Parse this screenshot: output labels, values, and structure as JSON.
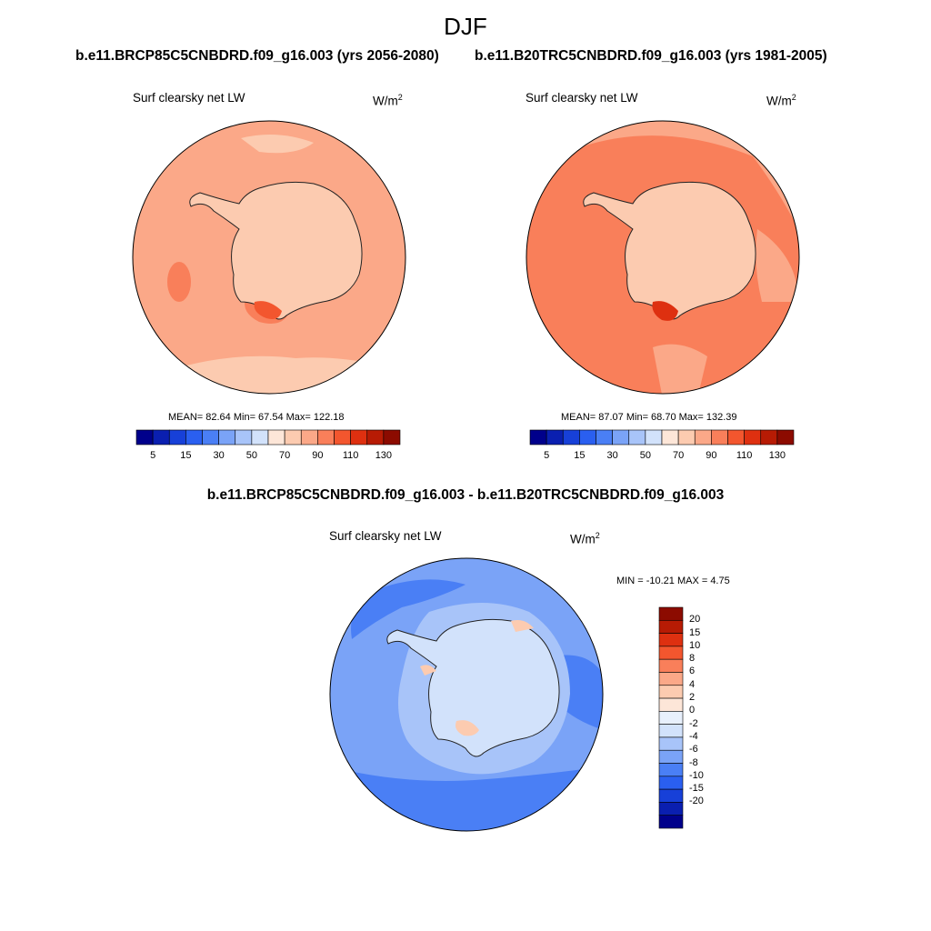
{
  "season": "DJF",
  "panels": {
    "left": {
      "case": "b.e11.BRCP85C5CNBDRD.f09_g16.003 (yrs 2056-2080)",
      "variable": "Surf clearsky net LW",
      "units": "W/m",
      "units_exp": "2",
      "stats": "MEAN=  82.64  Min=  67.54  Max= 122.18"
    },
    "right": {
      "case": "b.e11.B20TRC5CNBDRD.f09_g16.003 (yrs 1981-2005)",
      "variable": "Surf clearsky net LW",
      "units": "W/m",
      "units_exp": "2",
      "stats": "MEAN=  87.07  Min=  68.70  Max= 132.39"
    },
    "diff": {
      "title": "b.e11.BRCP85C5CNBDRD.f09_g16.003 - b.e11.B20TRC5CNBDRD.f09_g16.003",
      "variable": "Surf clearsky net LW",
      "units": "W/m",
      "units_exp": "2",
      "stats": "MIN = -10.21 MAX =   4.75"
    }
  },
  "colorbar_abs": {
    "colors": [
      "#00008b",
      "#0a1fb0",
      "#1740d8",
      "#2a5ff0",
      "#4a7ff5",
      "#7aa3f7",
      "#a8c4f9",
      "#d2e2fb",
      "#fde6d8",
      "#fccbb0",
      "#fba888",
      "#f97f5a",
      "#f3562e",
      "#de3010",
      "#b71b04",
      "#8c0b00"
    ],
    "labels": [
      "5",
      "15",
      "30",
      "50",
      "70",
      "90",
      "110",
      "130"
    ]
  },
  "colorbar_diff": {
    "colors": [
      "#8c0b00",
      "#b71b04",
      "#de3010",
      "#f3562e",
      "#f97f5a",
      "#fba888",
      "#fccbb0",
      "#fde6d8",
      "#e8f0fc",
      "#d2e2fb",
      "#a8c4f9",
      "#7aa3f7",
      "#4a7ff5",
      "#2a5ff0",
      "#1740d8",
      "#0a1fb0",
      "#00008b"
    ],
    "labels": [
      "20",
      "15",
      "10",
      "8",
      "6",
      "4",
      "2",
      "0",
      "-2",
      "-4",
      "-6",
      "-8",
      "-10",
      "-15",
      "-20"
    ]
  },
  "map_colors": {
    "left_ocean": "#fba888",
    "left_band": "#f97f5a",
    "left_light": "#fccbb0",
    "left_ice": "#fccbb0",
    "left_hot": "#f3562e",
    "right_ocean": "#f97f5a",
    "right_band": "#f3562e",
    "right_light": "#fba888",
    "right_ice": "#fccbb0",
    "right_hot": "#de3010",
    "diff_ocean": "#7aa3f7",
    "diff_deep": "#4a7ff5",
    "diff_light": "#a8c4f9",
    "diff_ice": "#d2e2fb",
    "diff_pos": "#fccbb0"
  }
}
